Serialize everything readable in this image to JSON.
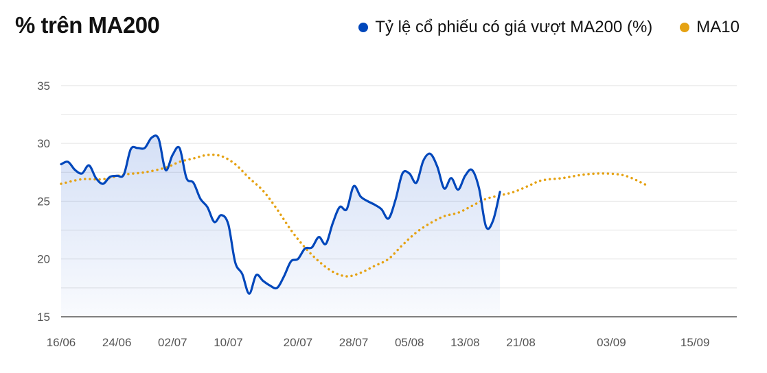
{
  "title": "% trên MA200",
  "colors": {
    "series_main": "#0047BB",
    "series_ma": "#E5A213",
    "grid": "#e3e3e3",
    "axis": "#555555",
    "area": "#3b6fd6"
  },
  "chart_data": {
    "type": "line",
    "title": "% trên MA200",
    "legend_position": "top-right",
    "grid": true,
    "ylim": [
      15,
      36
    ],
    "yticks": [
      15,
      20,
      25,
      30,
      35
    ],
    "xlim": [
      "2024-06-16",
      "2024-09-21"
    ],
    "xticks": [
      {
        "date": "2024-06-16",
        "label": "16/06"
      },
      {
        "date": "2024-06-24",
        "label": "24/06"
      },
      {
        "date": "2024-07-02",
        "label": "02/07"
      },
      {
        "date": "2024-07-10",
        "label": "10/07"
      },
      {
        "date": "2024-07-20",
        "label": "20/07"
      },
      {
        "date": "2024-07-28",
        "label": "28/07"
      },
      {
        "date": "2024-08-05",
        "label": "05/08"
      },
      {
        "date": "2024-08-13",
        "label": "13/08"
      },
      {
        "date": "2024-08-21",
        "label": "21/08"
      },
      {
        "date": "2024-09-03",
        "label": "03/09"
      },
      {
        "date": "2024-09-15",
        "label": "15/09"
      }
    ],
    "series": [
      {
        "name": "Tỷ lệ cổ phiếu có giá vượt MA200 (%)",
        "style": "solid-area",
        "points": [
          [
            "2024-06-16",
            28.2
          ],
          [
            "2024-06-17",
            28.4
          ],
          [
            "2024-06-18",
            27.7
          ],
          [
            "2024-06-19",
            27.4
          ],
          [
            "2024-06-20",
            28.1
          ],
          [
            "2024-06-21",
            27.0
          ],
          [
            "2024-06-22",
            26.5
          ],
          [
            "2024-06-23",
            27.1
          ],
          [
            "2024-06-24",
            27.2
          ],
          [
            "2024-06-25",
            27.3
          ],
          [
            "2024-06-26",
            29.5
          ],
          [
            "2024-06-27",
            29.6
          ],
          [
            "2024-06-28",
            29.6
          ],
          [
            "2024-06-29",
            30.5
          ],
          [
            "2024-06-30",
            30.4
          ],
          [
            "2024-07-01",
            27.7
          ],
          [
            "2024-07-02",
            29.0
          ],
          [
            "2024-07-03",
            29.6
          ],
          [
            "2024-07-04",
            27.0
          ],
          [
            "2024-07-05",
            26.6
          ],
          [
            "2024-07-06",
            25.2
          ],
          [
            "2024-07-07",
            24.5
          ],
          [
            "2024-07-08",
            23.2
          ],
          [
            "2024-07-09",
            23.8
          ],
          [
            "2024-07-10",
            23.0
          ],
          [
            "2024-07-11",
            19.7
          ],
          [
            "2024-07-12",
            18.7
          ],
          [
            "2024-07-13",
            17.0
          ],
          [
            "2024-07-14",
            18.6
          ],
          [
            "2024-07-15",
            18.1
          ],
          [
            "2024-07-16",
            17.7
          ],
          [
            "2024-07-17",
            17.5
          ],
          [
            "2024-07-18",
            18.5
          ],
          [
            "2024-07-19",
            19.8
          ],
          [
            "2024-07-20",
            20.0
          ],
          [
            "2024-07-21",
            20.9
          ],
          [
            "2024-07-22",
            21.0
          ],
          [
            "2024-07-23",
            21.9
          ],
          [
            "2024-07-24",
            21.3
          ],
          [
            "2024-07-25",
            23.1
          ],
          [
            "2024-07-26",
            24.5
          ],
          [
            "2024-07-27",
            24.3
          ],
          [
            "2024-07-28",
            26.3
          ],
          [
            "2024-07-29",
            25.4
          ],
          [
            "2024-07-30",
            25.0
          ],
          [
            "2024-07-31",
            24.7
          ],
          [
            "2024-08-01",
            24.3
          ],
          [
            "2024-08-02",
            23.5
          ],
          [
            "2024-08-03",
            25.1
          ],
          [
            "2024-08-04",
            27.4
          ],
          [
            "2024-08-05",
            27.4
          ],
          [
            "2024-08-06",
            26.6
          ],
          [
            "2024-08-07",
            28.5
          ],
          [
            "2024-08-08",
            29.1
          ],
          [
            "2024-08-09",
            28.0
          ],
          [
            "2024-08-10",
            26.1
          ],
          [
            "2024-08-11",
            27.0
          ],
          [
            "2024-08-12",
            26.0
          ],
          [
            "2024-08-13",
            27.2
          ],
          [
            "2024-08-14",
            27.7
          ],
          [
            "2024-08-15",
            26.1
          ],
          [
            "2024-08-16",
            22.8
          ],
          [
            "2024-08-17",
            23.3
          ],
          [
            "2024-08-18",
            25.8
          ]
        ]
      },
      {
        "name": "MA10",
        "style": "dotted",
        "points": [
          [
            "2024-06-16",
            26.5
          ],
          [
            "2024-06-19",
            26.9
          ],
          [
            "2024-06-22",
            26.9
          ],
          [
            "2024-06-25",
            27.3
          ],
          [
            "2024-06-28",
            27.5
          ],
          [
            "2024-07-01",
            27.9
          ],
          [
            "2024-07-03",
            28.4
          ],
          [
            "2024-07-05",
            28.7
          ],
          [
            "2024-07-07",
            29.0
          ],
          [
            "2024-07-09",
            28.9
          ],
          [
            "2024-07-11",
            28.2
          ],
          [
            "2024-07-13",
            27.0
          ],
          [
            "2024-07-15",
            25.9
          ],
          [
            "2024-07-17",
            24.3
          ],
          [
            "2024-07-19",
            22.5
          ],
          [
            "2024-07-21",
            21.0
          ],
          [
            "2024-07-23",
            19.8
          ],
          [
            "2024-07-25",
            18.9
          ],
          [
            "2024-07-27",
            18.5
          ],
          [
            "2024-07-29",
            18.8
          ],
          [
            "2024-07-31",
            19.4
          ],
          [
            "2024-08-02",
            20.0
          ],
          [
            "2024-08-04",
            21.2
          ],
          [
            "2024-08-06",
            22.3
          ],
          [
            "2024-08-08",
            23.1
          ],
          [
            "2024-08-10",
            23.7
          ],
          [
            "2024-08-12",
            24.0
          ],
          [
            "2024-08-14",
            24.6
          ],
          [
            "2024-08-16",
            25.2
          ],
          [
            "2024-08-18",
            25.5
          ],
          [
            "2024-08-20",
            25.8
          ],
          [
            "2024-08-22",
            26.3
          ],
          [
            "2024-08-24",
            26.8
          ],
          [
            "2024-08-27",
            27.0
          ],
          [
            "2024-08-30",
            27.3
          ],
          [
            "2024-09-02",
            27.4
          ],
          [
            "2024-09-05",
            27.2
          ],
          [
            "2024-09-08",
            26.4
          ]
        ]
      }
    ]
  }
}
